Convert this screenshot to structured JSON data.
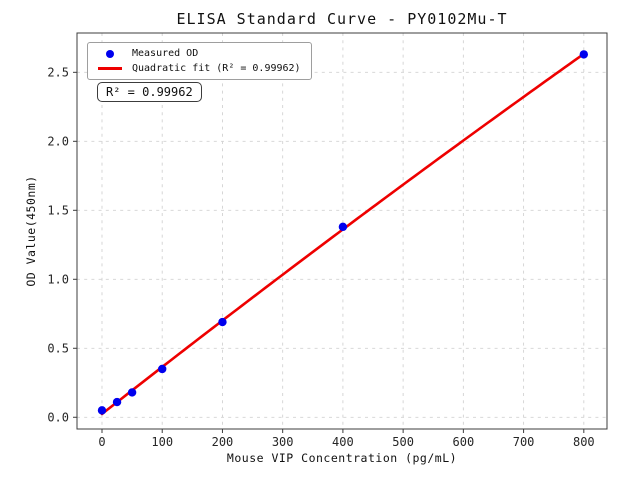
{
  "chart_data": {
    "type": "scatter",
    "title": "ELISA Standard Curve - PY0102Mu-T",
    "xlabel": "Mouse VIP Concentration (pg/mL)",
    "ylabel": "OD Value(450nm)",
    "series": [
      {
        "name": "Measured OD",
        "type": "scatter",
        "color": "#0000ee",
        "x": [
          0,
          25,
          50,
          100,
          200,
          400,
          800
        ],
        "y": [
          0.05,
          0.11,
          0.18,
          0.35,
          0.69,
          1.38,
          2.63
        ]
      },
      {
        "name": "Quadratic fit (R² = 0.99962)",
        "type": "line",
        "fit": "quadratic",
        "r_squared": 0.99962,
        "color": "#ee0000",
        "x_range": [
          0,
          800
        ]
      }
    ],
    "annotation": "R² = 0.99962",
    "xticks": [
      0,
      100,
      200,
      300,
      400,
      500,
      600,
      700,
      800
    ],
    "yticks": [
      0.0,
      0.5,
      1.0,
      1.5,
      2.0,
      2.5
    ],
    "xlim": [
      -41.5,
      838.5
    ],
    "ylim": [
      -0.085,
      2.785
    ],
    "grid": true,
    "grid_color": "#d2d2d2",
    "spine_color": "#3c3c3c",
    "legend_position": "upper left"
  }
}
